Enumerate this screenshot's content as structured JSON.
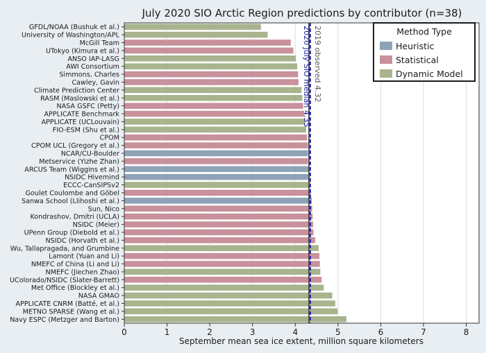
{
  "chart_data": {
    "type": "bar",
    "orientation": "horizontal",
    "title": "July 2020 SIO Arctic Region predictions by contributor (n=38)",
    "xlabel": "September mean sea ice extent, million square kilometers",
    "ylabel": "",
    "xlim": [
      0,
      8.3
    ],
    "xticks": [
      0,
      1,
      2,
      3,
      4,
      5,
      6,
      7,
      8
    ],
    "grid": true,
    "legend": {
      "title": "Method Type",
      "placement": "top-right",
      "entries": [
        {
          "label": "Heuristic",
          "color": "#8ea3b8"
        },
        {
          "label": "Statistical",
          "color": "#c8919c"
        },
        {
          "label": "Dynamic Model",
          "color": "#a7b48d"
        }
      ]
    },
    "reference_lines": [
      {
        "label": "2019 observed 4.32",
        "value": 4.32,
        "color": "#555555",
        "style": "solid"
      },
      {
        "label": "2020 July SIO median 4.35",
        "value": 4.35,
        "color": "#1a1aa6",
        "style": "dashed"
      }
    ],
    "bars": [
      {
        "label": "GFDL/NOAA (Bushuk et al.)",
        "value": 3.2,
        "method": "Dynamic Model"
      },
      {
        "label": "University of Washington/APL",
        "value": 3.36,
        "method": "Dynamic Model"
      },
      {
        "label": "McGill Team",
        "value": 3.9,
        "method": "Statistical"
      },
      {
        "label": "UTokyo (Kimura et al.)",
        "value": 3.96,
        "method": "Statistical"
      },
      {
        "label": "ANSO IAP-LASG",
        "value": 4.02,
        "method": "Dynamic Model"
      },
      {
        "label": "AWI Consortium",
        "value": 4.05,
        "method": "Dynamic Model"
      },
      {
        "label": "Simmons, Charles",
        "value": 4.07,
        "method": "Statistical"
      },
      {
        "label": "Cawley, Gavin",
        "value": 4.08,
        "method": "Statistical"
      },
      {
        "label": "Climate Prediction Center",
        "value": 4.15,
        "method": "Dynamic Model"
      },
      {
        "label": "RASM (Maslowski et al.)",
        "value": 4.17,
        "method": "Dynamic Model"
      },
      {
        "label": "NASA GSFC (Petty)",
        "value": 4.19,
        "method": "Statistical"
      },
      {
        "label": "APPLICATE Benchmark",
        "value": 4.22,
        "method": "Statistical"
      },
      {
        "label": "APPLICATE (UCLouvain)",
        "value": 4.24,
        "method": "Dynamic Model"
      },
      {
        "label": "FIO-ESM (Shu et al.)",
        "value": 4.26,
        "method": "Dynamic Model"
      },
      {
        "label": "CPOM",
        "value": 4.28,
        "method": "Statistical"
      },
      {
        "label": "CPOM UCL (Gregory et al.)",
        "value": 4.3,
        "method": "Statistical"
      },
      {
        "label": "NCAR/CU-Boulder",
        "value": 4.3,
        "method": "Heuristic"
      },
      {
        "label": "Metservice (Yizhe Zhan)",
        "value": 4.3,
        "method": "Statistical"
      },
      {
        "label": "ARCUS Team (Wiggins et al.)",
        "value": 4.34,
        "method": "Heuristic"
      },
      {
        "label": "NSIDC Hivemind",
        "value": 4.35,
        "method": "Heuristic"
      },
      {
        "label": "ECCC-CanSIPSv2",
        "value": 4.36,
        "method": "Dynamic Model"
      },
      {
        "label": "Goulet Coulombe and Göbel",
        "value": 4.37,
        "method": "Statistical"
      },
      {
        "label": "Sanwa School (Llihoshi et al.)",
        "value": 4.39,
        "method": "Heuristic"
      },
      {
        "label": "Sun, Nico",
        "value": 4.4,
        "method": "Statistical"
      },
      {
        "label": "Kondrashov, Dmitri  (UCLA)",
        "value": 4.41,
        "method": "Statistical"
      },
      {
        "label": "NSIDC (Meier)",
        "value": 4.42,
        "method": "Statistical"
      },
      {
        "label": "UPenn Group (Diebold et al.)",
        "value": 4.43,
        "method": "Statistical"
      },
      {
        "label": "NSIDC (Horvath et al.)",
        "value": 4.47,
        "method": "Statistical"
      },
      {
        "label": "Wu, Tallapragada, and Grumbine",
        "value": 4.55,
        "method": "Dynamic Model"
      },
      {
        "label": "Lamont (Yuan and Li)",
        "value": 4.57,
        "method": "Statistical"
      },
      {
        "label": "NMEFC of China (Li and Li)",
        "value": 4.58,
        "method": "Statistical"
      },
      {
        "label": "NMEFC (Jiechen Zhao)",
        "value": 4.59,
        "method": "Dynamic Model"
      },
      {
        "label": "UColorado/NSIDC (Slater-Barrett)",
        "value": 4.62,
        "method": "Statistical"
      },
      {
        "label": "Met Office (Blockley et al.)",
        "value": 4.67,
        "method": "Dynamic Model"
      },
      {
        "label": "NASA GMAO",
        "value": 4.87,
        "method": "Dynamic Model"
      },
      {
        "label": "APPLICATE CNRM (Batté, et al.)",
        "value": 4.94,
        "method": "Dynamic Model"
      },
      {
        "label": "METNO SPARSE (Wang et al.)",
        "value": 5.0,
        "method": "Dynamic Model"
      },
      {
        "label": "Navy ESPC (Metzger and Barton)",
        "value": 5.2,
        "method": "Dynamic Model"
      }
    ]
  }
}
